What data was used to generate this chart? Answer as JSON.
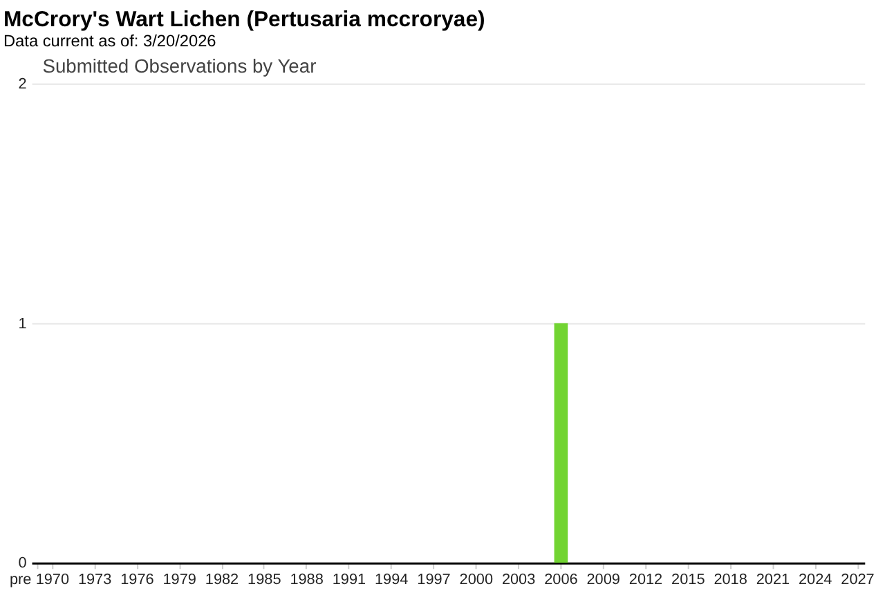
{
  "chart_data": {
    "type": "bar",
    "title": "McCrory's Wart Lichen   (Pertusaria mccroryae)",
    "subtitle": "Data current as of: 3/20/2026",
    "annotations": [
      "Submitted Observations by Year"
    ],
    "categories": [
      "pre",
      "1970",
      null,
      null,
      "1973",
      null,
      null,
      "1976",
      null,
      null,
      "1979",
      null,
      null,
      "1982",
      null,
      null,
      "1985",
      null,
      null,
      "1988",
      null,
      null,
      "1991",
      null,
      null,
      "1994",
      null,
      null,
      "1997",
      null,
      null,
      "2000",
      null,
      null,
      "2003",
      null,
      null,
      "2006",
      null,
      null,
      "2009",
      null,
      null,
      "2012",
      null,
      null,
      "2015",
      null,
      null,
      "2018",
      null,
      null,
      "2021",
      null,
      null,
      "2024",
      null,
      null,
      "2027"
    ],
    "values": [
      0,
      0,
      0,
      0,
      0,
      0,
      0,
      0,
      0,
      0,
      0,
      0,
      0,
      0,
      0,
      0,
      0,
      0,
      0,
      0,
      0,
      0,
      0,
      0,
      0,
      0,
      0,
      0,
      0,
      0,
      0,
      0,
      0,
      0,
      0,
      0,
      0,
      1,
      0,
      0,
      0,
      0,
      0,
      0,
      0,
      0,
      0,
      0,
      0,
      0,
      0,
      0,
      0,
      0,
      0,
      0,
      0,
      0,
      0
    ],
    "color": "#72d432",
    "ylim": [
      0,
      2
    ],
    "yticks": [
      0,
      1,
      2
    ],
    "grid": "y"
  }
}
